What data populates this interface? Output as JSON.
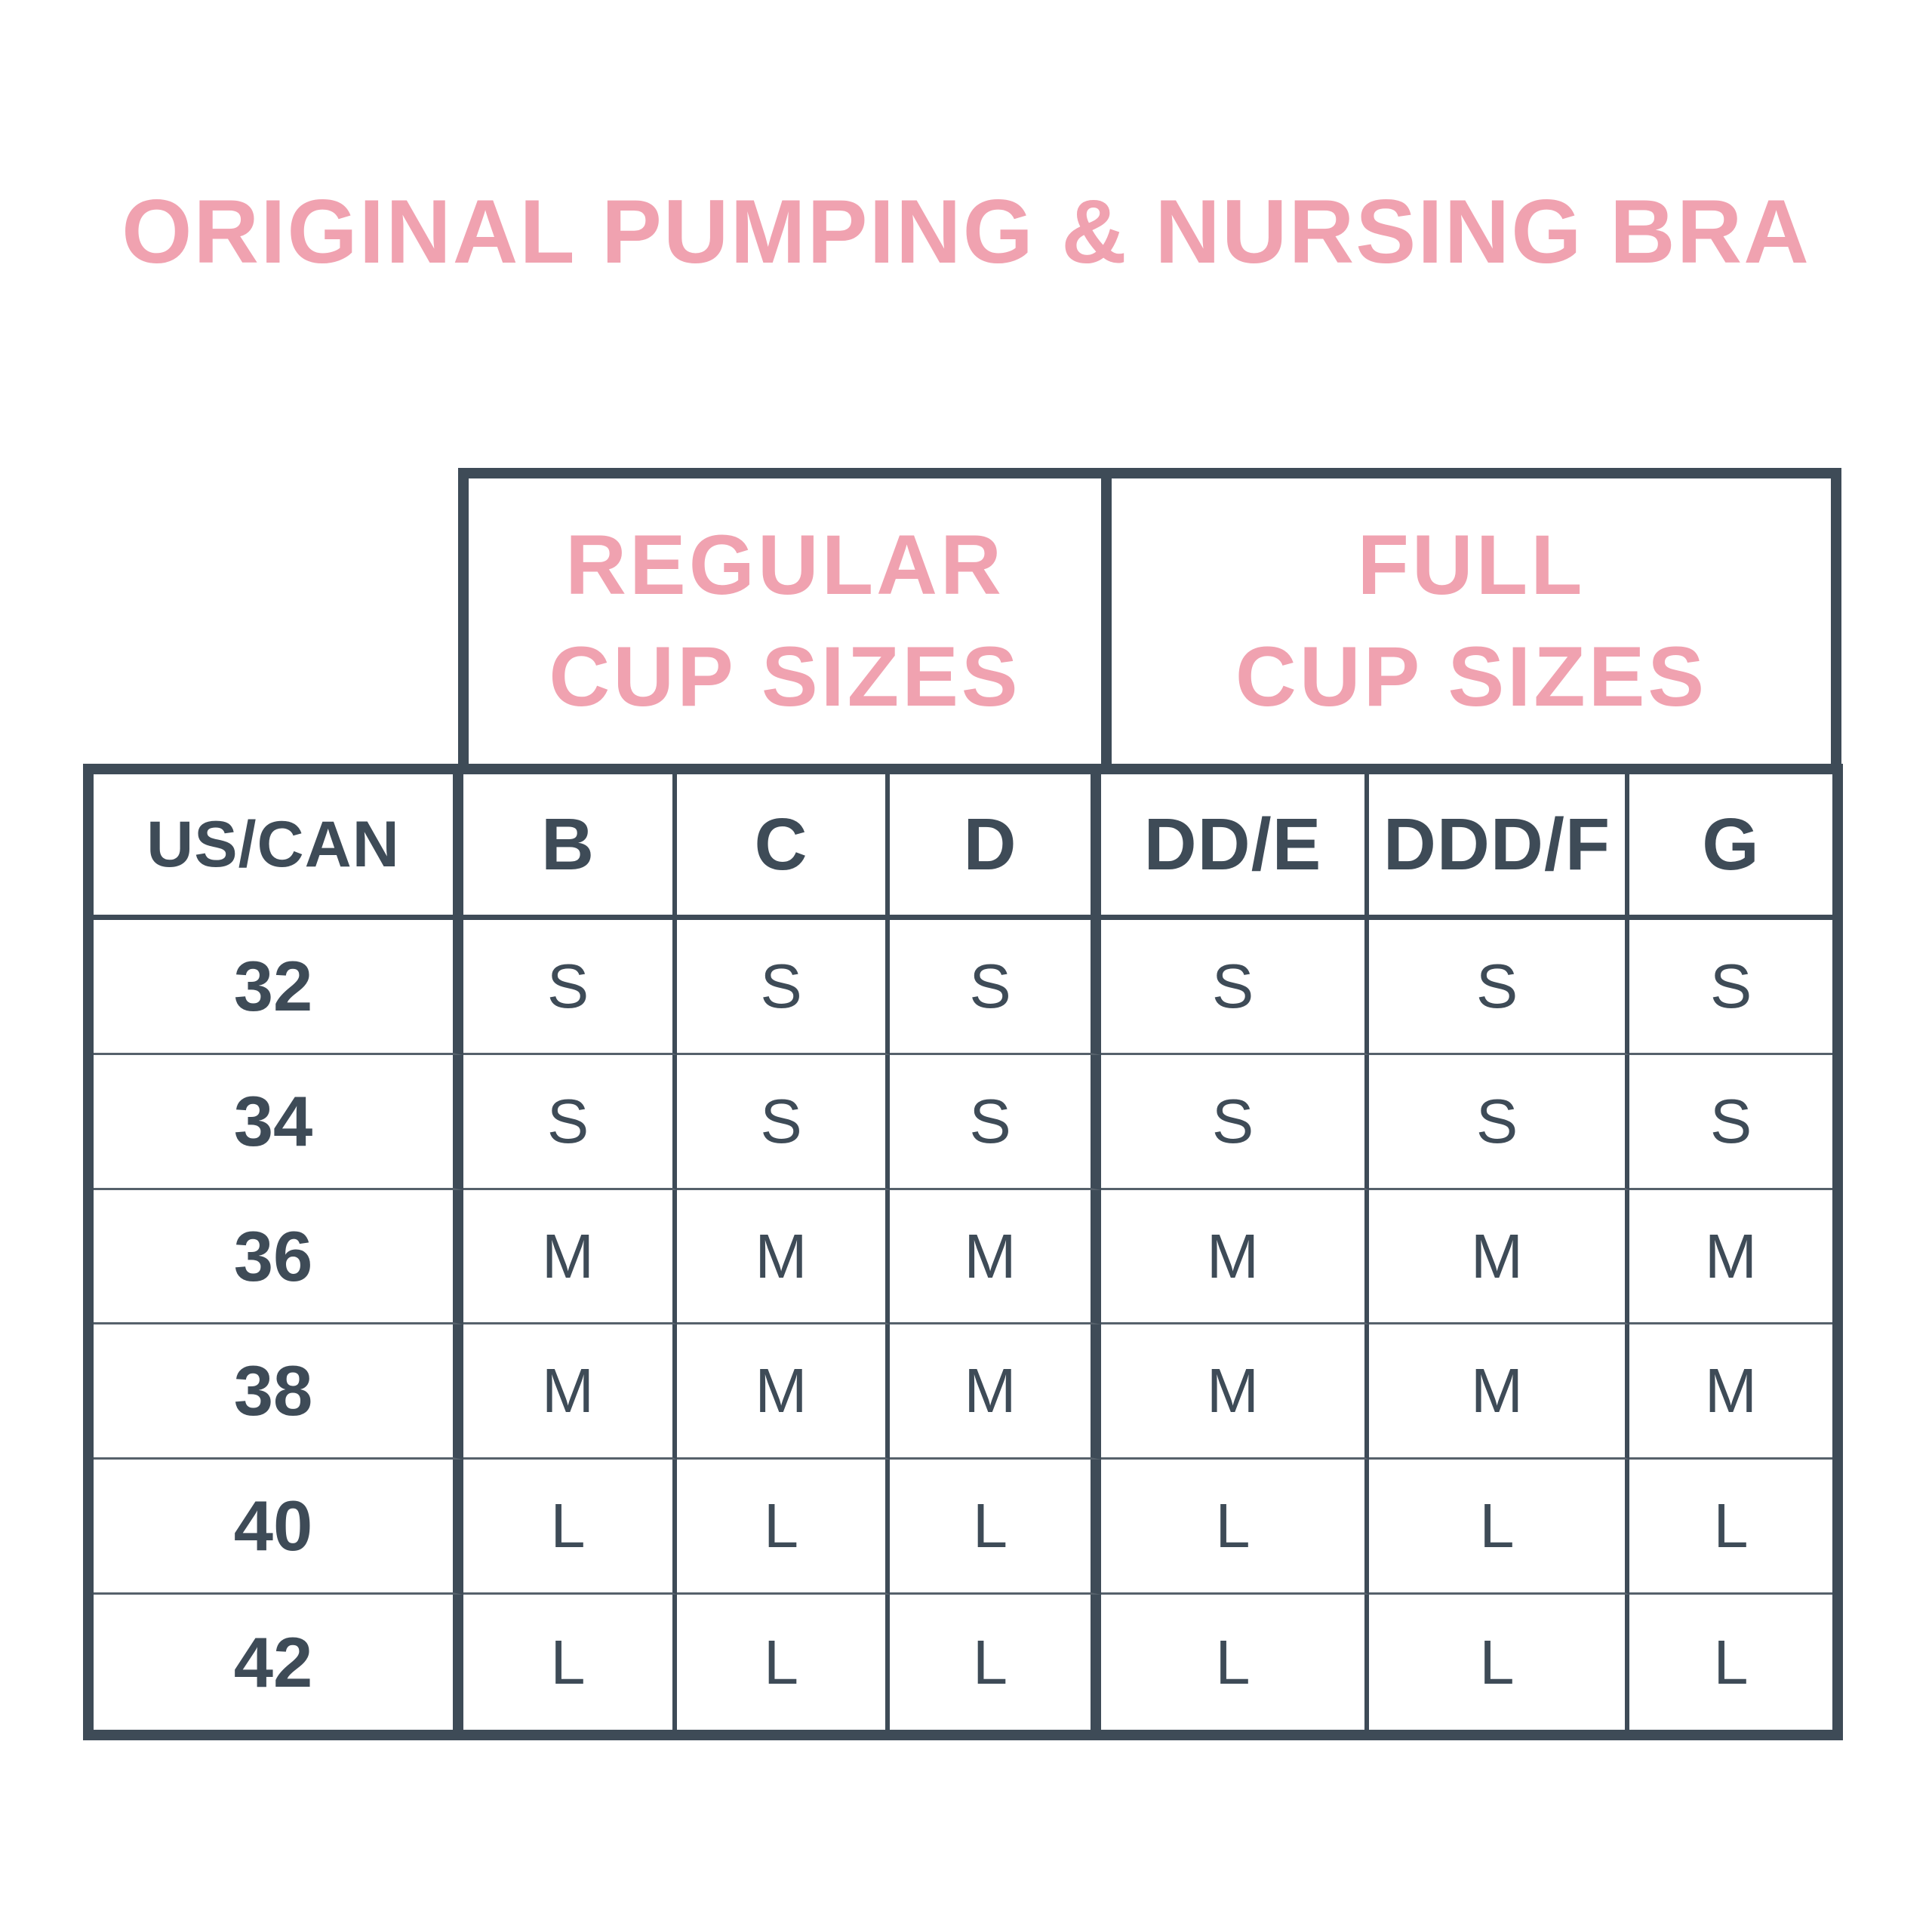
{
  "title": "ORIGINAL PUMPING & NURSING BRA",
  "colors": {
    "pink": "#F0A2B0",
    "dark_slate": "#3E4B57",
    "row_separator": "#56616B",
    "background": "#FFFFFF"
  },
  "size_chart": {
    "group_headers": [
      {
        "line1": "REGULAR",
        "line2": "CUP SIZES"
      },
      {
        "line1": "FULL",
        "line2": "CUP SIZES"
      }
    ],
    "band_column_header": "US/CAN",
    "cup_size_columns": [
      "B",
      "C",
      "D",
      "DD/E",
      "DDD/F",
      "G"
    ],
    "rows": [
      {
        "band": "32",
        "values": [
          "S",
          "S",
          "S",
          "S",
          "S",
          "S"
        ]
      },
      {
        "band": "34",
        "values": [
          "S",
          "S",
          "S",
          "S",
          "S",
          "S"
        ]
      },
      {
        "band": "36",
        "values": [
          "M",
          "M",
          "M",
          "M",
          "M",
          "M"
        ]
      },
      {
        "band": "38",
        "values": [
          "M",
          "M",
          "M",
          "M",
          "M",
          "M"
        ]
      },
      {
        "band": "40",
        "values": [
          "L",
          "L",
          "L",
          "L",
          "L",
          "L"
        ]
      },
      {
        "band": "42",
        "values": [
          "L",
          "L",
          "L",
          "L",
          "L",
          "L"
        ]
      }
    ]
  },
  "chart_data": {
    "type": "table",
    "title": "ORIGINAL PUMPING & NURSING BRA",
    "column_groups": [
      {
        "label": "REGULAR CUP SIZES",
        "columns": [
          "B",
          "C",
          "D"
        ]
      },
      {
        "label": "FULL CUP SIZES",
        "columns": [
          "DD/E",
          "DDD/F",
          "G"
        ]
      }
    ],
    "columns": [
      "US/CAN",
      "B",
      "C",
      "D",
      "DD/E",
      "DDD/F",
      "G"
    ],
    "rows": [
      [
        "32",
        "S",
        "S",
        "S",
        "S",
        "S",
        "S"
      ],
      [
        "34",
        "S",
        "S",
        "S",
        "S",
        "S",
        "S"
      ],
      [
        "36",
        "M",
        "M",
        "M",
        "M",
        "M",
        "M"
      ],
      [
        "38",
        "M",
        "M",
        "M",
        "M",
        "M",
        "M"
      ],
      [
        "40",
        "L",
        "L",
        "L",
        "L",
        "L",
        "L"
      ],
      [
        "42",
        "L",
        "L",
        "L",
        "L",
        "L",
        "L"
      ]
    ]
  }
}
